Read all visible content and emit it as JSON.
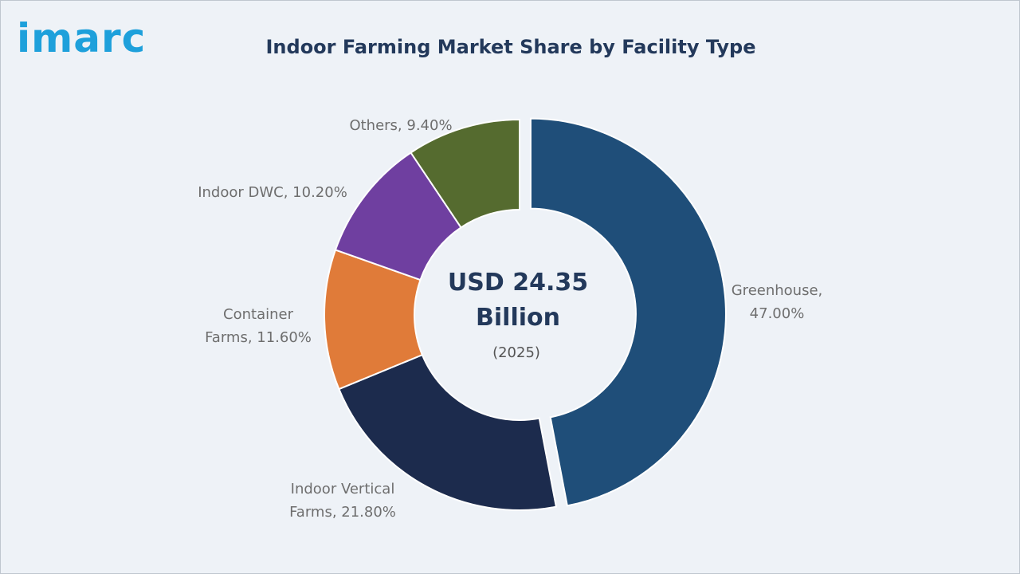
{
  "brand": {
    "logo_text": "imarc"
  },
  "chart_data": {
    "type": "pie",
    "variant": "donut",
    "title": "Indoor Farming Market Share by Facility Type",
    "center_text": {
      "line1": "USD 24.35",
      "line2": "Billion",
      "line3": "(2025)"
    },
    "slices": [
      {
        "label": "Greenhouse",
        "value": 47.0,
        "display": [
          "Greenhouse,",
          "47.00%"
        ],
        "color": "#1f4e79",
        "exploded": true
      },
      {
        "label": "Indoor Vertical Farms",
        "value": 21.8,
        "display": [
          "Indoor Vertical",
          "Farms, 21.80%"
        ],
        "color": "#1c2b4d",
        "exploded": false
      },
      {
        "label": "Container Farms",
        "value": 11.6,
        "display": [
          "Container",
          "Farms, 11.60%"
        ],
        "color": "#e07b39",
        "exploded": false
      },
      {
        "label": "Indoor DWC",
        "value": 10.2,
        "display": [
          "Indoor DWC, 10.20%"
        ],
        "color": "#6f3fa0",
        "exploded": false
      },
      {
        "label": "Others",
        "value": 9.4,
        "display": [
          "Others, 9.40%"
        ],
        "color": "#556b2f",
        "exploded": false
      }
    ],
    "colors": {
      "background": "#eef2f7",
      "title": "#23395b",
      "label": "#6e6e6e"
    }
  }
}
